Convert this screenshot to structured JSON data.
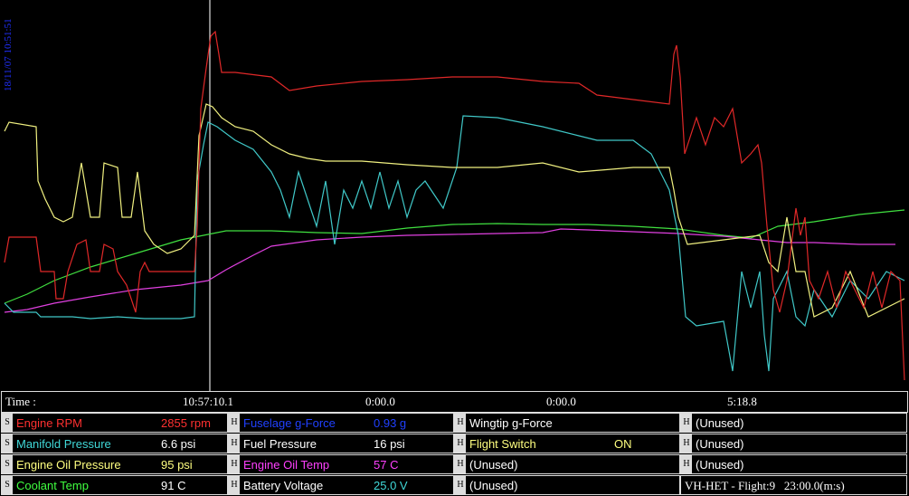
{
  "timestamp": "18/11/07 10:51:51",
  "time_bar": {
    "label": "Time :",
    "marks": [
      "10:57:10.1",
      "0:00.0",
      "0:00.0",
      "5:18.8"
    ]
  },
  "rows": [
    [
      {
        "flag": "S",
        "label": "Engine RPM",
        "value": "2855 rpm"
      },
      {
        "flag": "H",
        "label": "Fuselage g-Force",
        "value": "0.93 g"
      },
      {
        "flag": "H",
        "label": "Wingtip g-Force"
      },
      {
        "flag": "H",
        "label": "(Unused)"
      }
    ],
    [
      {
        "flag": "S",
        "label": "Manifold Pressure",
        "value": "6.6 psi"
      },
      {
        "flag": "H",
        "label": "Fuel Pressure",
        "value": "16 psi"
      },
      {
        "flag": "H",
        "label": "Flight Switch",
        "value": "ON"
      },
      {
        "flag": "H",
        "label": "(Unused)"
      }
    ],
    [
      {
        "flag": "S",
        "label": "Engine Oil Pressure",
        "value": "95 psi"
      },
      {
        "flag": "H",
        "label": "Engine Oil Temp",
        "value": "57 C"
      },
      {
        "flag": "H",
        "label": "(Unused)"
      },
      {
        "flag": "H",
        "label": "(Unused)"
      }
    ],
    [
      {
        "flag": "S",
        "label": "Coolant Temp",
        "value": "91 C"
      },
      {
        "flag": "H",
        "label": "Battery Voltage",
        "value": "25.0 V"
      },
      {
        "flag": "H",
        "label": "(Unused)"
      },
      {
        "label": "VH-HET - Flight:9   23:00.0(m:s)"
      }
    ]
  ]
}
